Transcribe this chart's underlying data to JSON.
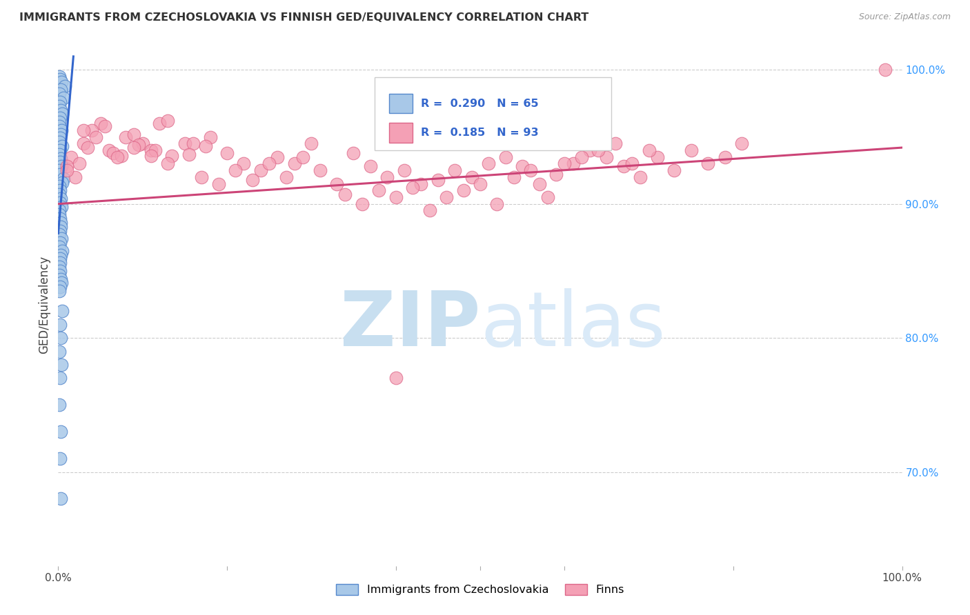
{
  "title": "IMMIGRANTS FROM CZECHOSLOVAKIA VS FINNISH GED/EQUIVALENCY CORRELATION CHART",
  "source": "Source: ZipAtlas.com",
  "ylabel": "GED/Equivalency",
  "legend_blue_r": "R = 0.290",
  "legend_blue_n": "N = 65",
  "legend_pink_r": "R = 0.185",
  "legend_pink_n": "N = 93",
  "legend_blue_label": "Immigrants from Czechoslovakia",
  "legend_pink_label": "Finns",
  "right_yticks": [
    "100.0%",
    "90.0%",
    "80.0%",
    "70.0%"
  ],
  "right_ytick_vals": [
    1.0,
    0.9,
    0.8,
    0.7
  ],
  "blue_color": "#a8c8e8",
  "pink_color": "#f4a0b5",
  "blue_line_color": "#3366cc",
  "pink_line_color": "#cc4477",
  "blue_edge_color": "#5588cc",
  "pink_edge_color": "#dd6688",
  "watermark_zip_color": "#cce0f0",
  "watermark_atlas_color": "#b8d8f0",
  "blue_x": [
    0.001,
    0.002,
    0.004,
    0.008,
    0.003,
    0.001,
    0.006,
    0.002,
    0.001,
    0.003,
    0.005,
    0.002,
    0.001,
    0.001,
    0.004,
    0.003,
    0.002,
    0.001,
    0.005,
    0.002,
    0.001,
    0.003,
    0.002,
    0.004,
    0.001,
    0.002,
    0.006,
    0.005,
    0.001,
    0.002,
    0.001,
    0.003,
    0.002,
    0.004,
    0.001,
    0.001,
    0.002,
    0.003,
    0.003,
    0.002,
    0.001,
    0.004,
    0.002,
    0.001,
    0.005,
    0.003,
    0.002,
    0.002,
    0.001,
    0.002,
    0.001,
    0.003,
    0.004,
    0.002,
    0.001,
    0.005,
    0.002,
    0.003,
    0.001,
    0.004,
    0.002,
    0.001,
    0.003,
    0.002,
    0.003
  ],
  "blue_y": [
    0.995,
    0.993,
    0.991,
    0.988,
    0.985,
    0.982,
    0.979,
    0.976,
    0.973,
    0.97,
    0.967,
    0.964,
    0.961,
    0.958,
    0.955,
    0.952,
    0.949,
    0.946,
    0.943,
    0.94,
    0.937,
    0.934,
    0.931,
    0.928,
    0.925,
    0.922,
    0.919,
    0.916,
    0.913,
    0.91,
    0.907,
    0.904,
    0.901,
    0.898,
    0.895,
    0.892,
    0.889,
    0.886,
    0.883,
    0.88,
    0.877,
    0.874,
    0.871,
    0.868,
    0.865,
    0.862,
    0.859,
    0.856,
    0.853,
    0.85,
    0.847,
    0.844,
    0.841,
    0.838,
    0.835,
    0.82,
    0.81,
    0.8,
    0.79,
    0.78,
    0.77,
    0.75,
    0.73,
    0.71,
    0.68
  ],
  "pink_x": [
    0.015,
    0.03,
    0.05,
    0.02,
    0.04,
    0.06,
    0.08,
    0.1,
    0.12,
    0.025,
    0.045,
    0.065,
    0.09,
    0.11,
    0.13,
    0.15,
    0.01,
    0.035,
    0.055,
    0.075,
    0.095,
    0.115,
    0.135,
    0.16,
    0.18,
    0.01,
    0.03,
    0.07,
    0.09,
    0.11,
    0.13,
    0.155,
    0.175,
    0.2,
    0.22,
    0.24,
    0.26,
    0.28,
    0.3,
    0.17,
    0.19,
    0.21,
    0.23,
    0.25,
    0.27,
    0.29,
    0.31,
    0.33,
    0.35,
    0.37,
    0.39,
    0.41,
    0.43,
    0.45,
    0.47,
    0.49,
    0.51,
    0.53,
    0.55,
    0.57,
    0.59,
    0.61,
    0.63,
    0.65,
    0.67,
    0.69,
    0.71,
    0.73,
    0.75,
    0.77,
    0.79,
    0.81,
    0.34,
    0.36,
    0.38,
    0.4,
    0.42,
    0.44,
    0.46,
    0.48,
    0.5,
    0.52,
    0.54,
    0.56,
    0.58,
    0.6,
    0.62,
    0.64,
    0.66,
    0.68,
    0.7,
    0.98,
    0.4
  ],
  "pink_y": [
    0.935,
    0.945,
    0.96,
    0.92,
    0.955,
    0.94,
    0.95,
    0.945,
    0.96,
    0.93,
    0.95,
    0.938,
    0.952,
    0.94,
    0.962,
    0.945,
    0.928,
    0.942,
    0.958,
    0.936,
    0.944,
    0.94,
    0.936,
    0.945,
    0.95,
    0.925,
    0.955,
    0.935,
    0.942,
    0.936,
    0.93,
    0.937,
    0.943,
    0.938,
    0.93,
    0.925,
    0.935,
    0.93,
    0.945,
    0.92,
    0.915,
    0.925,
    0.918,
    0.93,
    0.92,
    0.935,
    0.925,
    0.915,
    0.938,
    0.928,
    0.92,
    0.925,
    0.915,
    0.918,
    0.925,
    0.92,
    0.93,
    0.935,
    0.928,
    0.915,
    0.922,
    0.93,
    0.94,
    0.935,
    0.928,
    0.92,
    0.935,
    0.925,
    0.94,
    0.93,
    0.935,
    0.945,
    0.907,
    0.9,
    0.91,
    0.905,
    0.912,
    0.895,
    0.905,
    0.91,
    0.915,
    0.9,
    0.92,
    0.925,
    0.905,
    0.93,
    0.935,
    0.94,
    0.945,
    0.93,
    0.94,
    1.0,
    0.77
  ]
}
